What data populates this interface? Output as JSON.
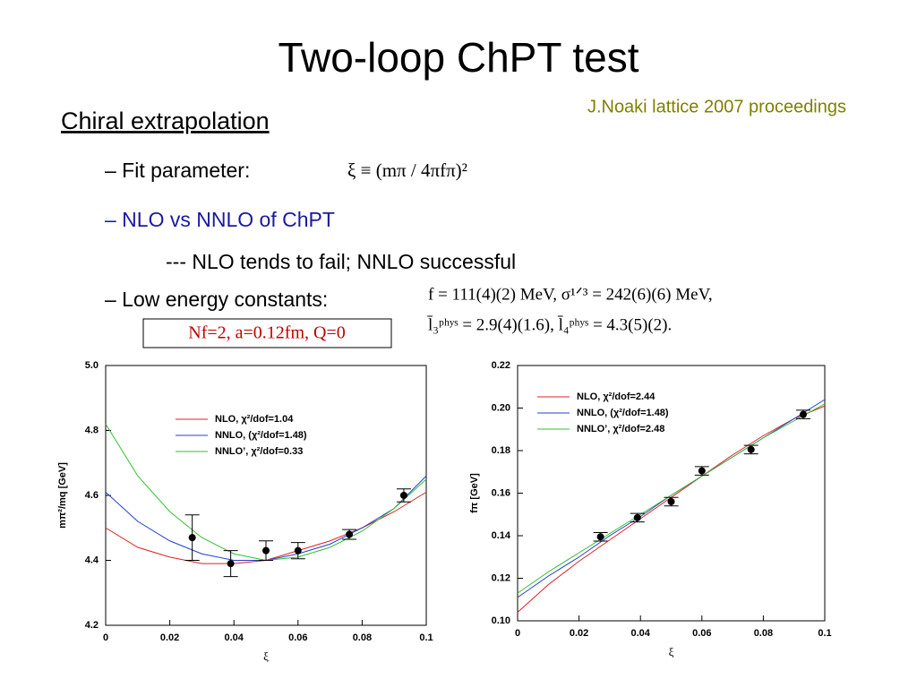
{
  "title": "Two-loop ChPT test",
  "reference": "J.Noaki  lattice 2007 proceedings",
  "heading": "Chiral extrapolation",
  "bullets": [
    "– Fit parameter:",
    "– NLO vs NNLO of ChPT",
    "--- NLO tends to fail; NNLO successful",
    "– Low energy constants:"
  ],
  "formula_xi": "ξ ≡ (mπ / 4πfπ)²",
  "constants": [
    "f  = 111(4)(2) MeV,   σ¹ᐟ³ = 242(6)(6) MeV,",
    "l̄₃ᵖʰʸˢ = 2.9(4)(1.6),       l̄₄ᵖʰʸˢ = 4.3(5)(2)."
  ],
  "setup": "Nf=2, a=0.12fm, Q=0",
  "chart_data": [
    {
      "type": "line",
      "xlabel": "ξ",
      "ylabel": "mπ²/mq [GeV]",
      "legend": "upper right",
      "xlim": [
        0,
        0.1
      ],
      "xticks": [
        0,
        0.02,
        0.04,
        0.06,
        0.08,
        0.1
      ],
      "ylim": [
        4.2,
        5.0
      ],
      "yticks": [
        4.2,
        4.4,
        4.6,
        4.8,
        {
          "value": 5,
          "label": "5.0"
        }
      ],
      "series": [
        {
          "name": "NLO, χ²/dof=1.04",
          "color": "#e02020",
          "x": [
            0,
            0.01,
            0.02,
            0.03,
            0.04,
            0.05,
            0.06,
            0.07,
            0.08,
            0.09,
            0.1
          ],
          "values": [
            4.5,
            4.44,
            4.41,
            4.39,
            4.39,
            4.4,
            4.43,
            4.46,
            4.5,
            4.55,
            4.61
          ]
        },
        {
          "name": "NNLO, (χ²/dof=1.48)",
          "color": "#2040d0",
          "x": [
            0,
            0.01,
            0.02,
            0.03,
            0.04,
            0.05,
            0.06,
            0.07,
            0.08,
            0.09,
            0.1
          ],
          "values": [
            4.61,
            4.52,
            4.46,
            4.42,
            4.4,
            4.4,
            4.42,
            4.45,
            4.5,
            4.56,
            4.66
          ]
        },
        {
          "name": "NNLO’, χ²/dof=0.33",
          "color": "#30c030",
          "x": [
            0,
            0.01,
            0.02,
            0.03,
            0.04,
            0.05,
            0.06,
            0.07,
            0.08,
            0.09,
            0.1
          ],
          "values": [
            4.82,
            4.66,
            4.55,
            4.47,
            4.42,
            4.4,
            4.41,
            4.44,
            4.49,
            4.56,
            4.65
          ]
        }
      ],
      "points": {
        "x": [
          0.027,
          0.039,
          0.05,
          0.06,
          0.076,
          0.093
        ],
        "values": [
          4.47,
          4.39,
          4.43,
          4.43,
          4.48,
          4.6
        ],
        "errors": [
          0.07,
          0.04,
          0.03,
          0.025,
          0.015,
          0.02
        ]
      }
    },
    {
      "type": "line",
      "xlabel": "ξ",
      "ylabel": "fπ [GeV]",
      "legend": "upper left",
      "xlim": [
        0,
        0.1
      ],
      "xticks": [
        0,
        0.02,
        0.04,
        0.06,
        0.08,
        0.1
      ],
      "ylim": [
        0.1,
        0.22
      ],
      "yticks": [
        {
          "value": 0.1,
          "label": "0.10"
        },
        0.12,
        0.14,
        0.16,
        0.18,
        {
          "value": 0.2,
          "label": "0.20"
        },
        0.22
      ],
      "series": [
        {
          "name": "NLO, χ²/dof=2.44",
          "color": "#e02020",
          "x": [
            0,
            0.01,
            0.02,
            0.03,
            0.04,
            0.05,
            0.06,
            0.07,
            0.08,
            0.09,
            0.1
          ],
          "values": [
            0.104,
            0.117,
            0.128,
            0.138,
            0.148,
            0.158,
            0.168,
            0.178,
            0.187,
            0.195,
            0.201
          ]
        },
        {
          "name": "NNLO, (χ²/dof=1.48)",
          "color": "#2040d0",
          "x": [
            0,
            0.01,
            0.02,
            0.03,
            0.04,
            0.05,
            0.06,
            0.07,
            0.08,
            0.09,
            0.1
          ],
          "values": [
            0.111,
            0.121,
            0.13,
            0.14,
            0.149,
            0.159,
            0.168,
            0.177,
            0.186,
            0.195,
            0.204
          ]
        },
        {
          "name": "NNLO’, χ²/dof=2.48",
          "color": "#30c030",
          "x": [
            0,
            0.01,
            0.02,
            0.03,
            0.04,
            0.05,
            0.06,
            0.07,
            0.08,
            0.09,
            0.1
          ],
          "values": [
            0.113,
            0.123,
            0.132,
            0.141,
            0.15,
            0.159,
            0.168,
            0.177,
            0.186,
            0.194,
            0.202
          ]
        }
      ],
      "points": {
        "x": [
          0.027,
          0.039,
          0.05,
          0.06,
          0.076,
          0.093
        ],
        "values": [
          0.1395,
          0.1485,
          0.156,
          0.1705,
          0.1805,
          0.197
        ],
        "errors": [
          0.002,
          0.002,
          0.002,
          0.002,
          0.002,
          0.002
        ]
      }
    }
  ]
}
